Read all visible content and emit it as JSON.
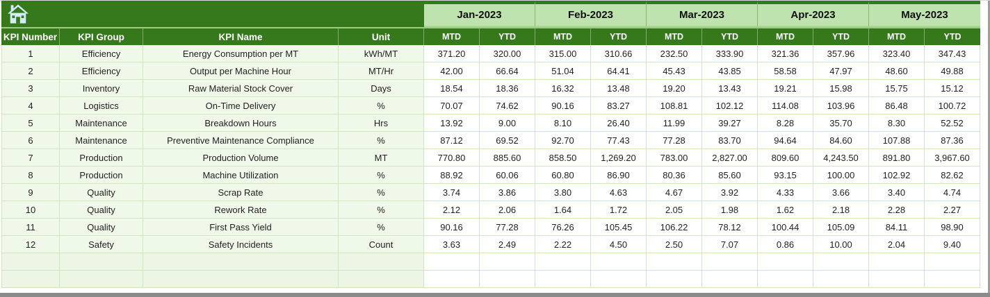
{
  "table": {
    "left_headers": [
      "KPI Number",
      "KPI Group",
      "KPI Name",
      "Unit"
    ],
    "months": [
      "Jan-2023",
      "Feb-2023",
      "Mar-2023",
      "Apr-2023",
      "May-2023"
    ],
    "sub_headers": [
      "MTD",
      "YTD"
    ],
    "rows": [
      {
        "kpi_number": "1",
        "kpi_group": "Efficiency",
        "kpi_name": "Energy Consumption per MT",
        "unit": "kWh/MT",
        "values": [
          "371.20",
          "320.00",
          "315.00",
          "310.66",
          "232.50",
          "333.90",
          "321.36",
          "357.96",
          "323.40",
          "347.43"
        ]
      },
      {
        "kpi_number": "2",
        "kpi_group": "Efficiency",
        "kpi_name": "Output per Machine Hour",
        "unit": "MT/Hr",
        "values": [
          "42.00",
          "66.64",
          "51.04",
          "64.41",
          "45.43",
          "43.85",
          "58.58",
          "47.97",
          "48.60",
          "49.88"
        ]
      },
      {
        "kpi_number": "3",
        "kpi_group": "Inventory",
        "kpi_name": "Raw Material Stock Cover",
        "unit": "Days",
        "values": [
          "18.54",
          "18.36",
          "16.32",
          "13.48",
          "19.20",
          "13.43",
          "19.21",
          "15.98",
          "15.75",
          "15.12"
        ]
      },
      {
        "kpi_number": "4",
        "kpi_group": "Logistics",
        "kpi_name": "On-Time Delivery",
        "unit": "%",
        "values": [
          "70.07",
          "74.62",
          "90.16",
          "83.27",
          "108.81",
          "102.12",
          "114.08",
          "103.96",
          "86.48",
          "100.72"
        ]
      },
      {
        "kpi_number": "5",
        "kpi_group": "Maintenance",
        "kpi_name": "Breakdown Hours",
        "unit": "Hrs",
        "values": [
          "13.92",
          "9.00",
          "8.10",
          "26.40",
          "11.99",
          "39.27",
          "8.28",
          "35.70",
          "8.30",
          "52.52"
        ]
      },
      {
        "kpi_number": "6",
        "kpi_group": "Maintenance",
        "kpi_name": "Preventive Maintenance Compliance",
        "unit": "%",
        "values": [
          "87.12",
          "69.52",
          "92.70",
          "77.43",
          "77.28",
          "83.70",
          "94.64",
          "84.60",
          "107.88",
          "87.36"
        ]
      },
      {
        "kpi_number": "7",
        "kpi_group": "Production",
        "kpi_name": "Production Volume",
        "unit": "MT",
        "values": [
          "770.80",
          "885.60",
          "858.50",
          "1,269.20",
          "783.00",
          "2,827.00",
          "809.60",
          "4,243.50",
          "891.80",
          "3,967.60"
        ]
      },
      {
        "kpi_number": "8",
        "kpi_group": "Production",
        "kpi_name": "Machine Utilization",
        "unit": "%",
        "values": [
          "88.92",
          "60.06",
          "60.80",
          "86.90",
          "80.36",
          "85.60",
          "93.15",
          "100.00",
          "102.92",
          "82.62"
        ]
      },
      {
        "kpi_number": "9",
        "kpi_group": "Quality",
        "kpi_name": "Scrap Rate",
        "unit": "%",
        "values": [
          "3.74",
          "3.86",
          "3.80",
          "4.63",
          "4.67",
          "3.92",
          "4.33",
          "3.66",
          "3.40",
          "4.74"
        ]
      },
      {
        "kpi_number": "10",
        "kpi_group": "Quality",
        "kpi_name": "Rework Rate",
        "unit": "%",
        "values": [
          "2.12",
          "2.06",
          "1.64",
          "1.72",
          "2.05",
          "1.98",
          "1.62",
          "2.18",
          "2.28",
          "2.27"
        ]
      },
      {
        "kpi_number": "11",
        "kpi_group": "Quality",
        "kpi_name": "First Pass Yield",
        "unit": "%",
        "values": [
          "90.16",
          "77.28",
          "76.26",
          "105.45",
          "106.22",
          "78.12",
          "100.44",
          "105.09",
          "84.11",
          "98.90"
        ]
      },
      {
        "kpi_number": "12",
        "kpi_group": "Safety",
        "kpi_name": "Safety Incidents",
        "unit": "Count",
        "values": [
          "3.63",
          "2.49",
          "2.22",
          "4.50",
          "2.50",
          "7.07",
          "0.86",
          "10.00",
          "2.04",
          "9.40"
        ]
      }
    ],
    "empty_row_count": 2
  },
  "colors": {
    "header_green": "#36791c",
    "month_band_green": "#bfe3ae",
    "gridline_green": "#cfe6bf",
    "row_tint_green": "#f0f8ea",
    "home_icon_blue": "#d4edf8",
    "window_edge_gray": "#8b8b8b"
  }
}
